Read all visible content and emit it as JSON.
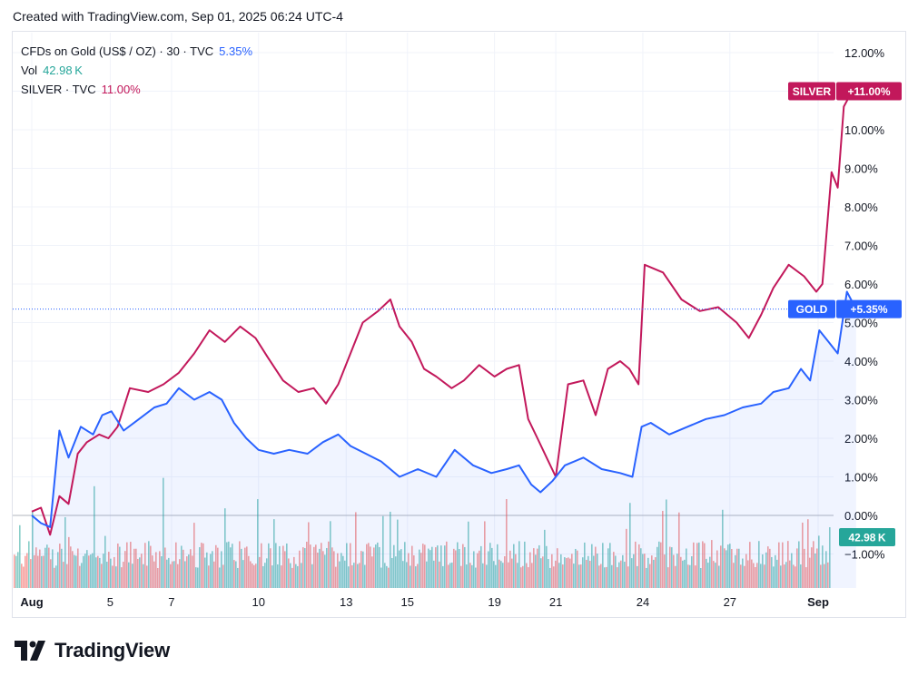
{
  "header": {
    "created_text": "Created with TradingView.com, Sep 01, 2025 06:24 UTC-4"
  },
  "legend": {
    "main": {
      "label": "CFDs on Gold (US$ / OZ) · 30 · TVC",
      "value": "5.35%",
      "color": "#2962ff"
    },
    "vol": {
      "label": "Vol",
      "value": "42.98 K",
      "color": "#26a69a"
    },
    "compare": {
      "label": "SILVER · TVC",
      "value": "11.00%",
      "color": "#c2185b"
    }
  },
  "footer": {
    "brand": "TradingView"
  },
  "colors": {
    "gold_line": "#2962ff",
    "gold_fill": "#2962ff",
    "silver_line": "#c2185b",
    "vol_up": "#26a69a",
    "vol_down": "#ef5350",
    "grid": "#f0f3fa",
    "axis_text": "#131722"
  },
  "chart_data": {
    "type": "line",
    "title": "",
    "y_unit": "%",
    "ylim": [
      -1.4,
      12.4
    ],
    "yticks": [
      "12.00%",
      "11.00%",
      "10.00%",
      "9.00%",
      "8.00%",
      "7.00%",
      "6.00%",
      "5.00%",
      "4.00%",
      "3.00%",
      "2.00%",
      "1.00%",
      "0.00%",
      "−1.00%"
    ],
    "ytick_values": [
      12,
      11,
      10,
      9,
      8,
      7,
      6,
      5,
      4,
      3,
      2,
      1,
      0,
      -1
    ],
    "x_date_labels": [
      "Aug",
      "5",
      "7",
      "10",
      "13",
      "15",
      "19",
      "21",
      "24",
      "27",
      "Sep"
    ],
    "x_date_label_t": [
      0.0,
      0.128,
      0.228,
      0.37,
      0.513,
      0.613,
      0.755,
      0.855,
      0.997,
      1.139,
      1.283
    ],
    "series": [
      {
        "name": "GOLD",
        "badge": "+5.35%",
        "color": "#2962ff",
        "last_value": 5.35,
        "points": [
          [
            0,
            0.0
          ],
          [
            0.015,
            -0.2
          ],
          [
            0.03,
            -0.3
          ],
          [
            0.045,
            2.2
          ],
          [
            0.06,
            1.5
          ],
          [
            0.08,
            2.3
          ],
          [
            0.1,
            2.1
          ],
          [
            0.115,
            2.6
          ],
          [
            0.13,
            2.7
          ],
          [
            0.15,
            2.2
          ],
          [
            0.175,
            2.5
          ],
          [
            0.2,
            2.8
          ],
          [
            0.22,
            2.9
          ],
          [
            0.24,
            3.3
          ],
          [
            0.265,
            3.0
          ],
          [
            0.29,
            3.2
          ],
          [
            0.31,
            3.0
          ],
          [
            0.33,
            2.4
          ],
          [
            0.35,
            2.0
          ],
          [
            0.37,
            1.7
          ],
          [
            0.395,
            1.6
          ],
          [
            0.42,
            1.7
          ],
          [
            0.45,
            1.6
          ],
          [
            0.475,
            1.9
          ],
          [
            0.5,
            2.1
          ],
          [
            0.52,
            1.8
          ],
          [
            0.545,
            1.6
          ],
          [
            0.57,
            1.4
          ],
          [
            0.6,
            1.0
          ],
          [
            0.63,
            1.2
          ],
          [
            0.66,
            1.0
          ],
          [
            0.69,
            1.7
          ],
          [
            0.72,
            1.3
          ],
          [
            0.75,
            1.1
          ],
          [
            0.775,
            1.2
          ],
          [
            0.795,
            1.3
          ],
          [
            0.815,
            0.8
          ],
          [
            0.83,
            0.6
          ],
          [
            0.85,
            0.9
          ],
          [
            0.87,
            1.3
          ],
          [
            0.9,
            1.5
          ],
          [
            0.93,
            1.2
          ],
          [
            0.96,
            1.1
          ],
          [
            0.98,
            1.0
          ],
          [
            0.995,
            2.3
          ],
          [
            1.01,
            2.4
          ],
          [
            1.04,
            2.1
          ],
          [
            1.07,
            2.3
          ],
          [
            1.1,
            2.5
          ],
          [
            1.13,
            2.6
          ],
          [
            1.16,
            2.8
          ],
          [
            1.19,
            2.9
          ],
          [
            1.21,
            3.2
          ],
          [
            1.235,
            3.3
          ],
          [
            1.255,
            3.8
          ],
          [
            1.27,
            3.5
          ],
          [
            1.285,
            4.8
          ],
          [
            1.3,
            4.5
          ],
          [
            1.315,
            4.2
          ],
          [
            1.33,
            5.8
          ],
          [
            1.345,
            5.35
          ]
        ]
      },
      {
        "name": "SILVER",
        "badge": "+11.00%",
        "color": "#c2185b",
        "last_value": 11.0,
        "points": [
          [
            0,
            0.1
          ],
          [
            0.015,
            0.2
          ],
          [
            0.03,
            -0.5
          ],
          [
            0.045,
            0.5
          ],
          [
            0.06,
            0.3
          ],
          [
            0.075,
            1.6
          ],
          [
            0.09,
            1.9
          ],
          [
            0.11,
            2.1
          ],
          [
            0.125,
            2.0
          ],
          [
            0.14,
            2.3
          ],
          [
            0.16,
            3.3
          ],
          [
            0.19,
            3.2
          ],
          [
            0.215,
            3.4
          ],
          [
            0.24,
            3.7
          ],
          [
            0.265,
            4.2
          ],
          [
            0.29,
            4.8
          ],
          [
            0.315,
            4.5
          ],
          [
            0.34,
            4.9
          ],
          [
            0.365,
            4.6
          ],
          [
            0.385,
            4.1
          ],
          [
            0.41,
            3.5
          ],
          [
            0.435,
            3.2
          ],
          [
            0.46,
            3.3
          ],
          [
            0.48,
            2.9
          ],
          [
            0.5,
            3.4
          ],
          [
            0.52,
            4.2
          ],
          [
            0.54,
            5.0
          ],
          [
            0.565,
            5.3
          ],
          [
            0.585,
            5.6
          ],
          [
            0.6,
            4.9
          ],
          [
            0.62,
            4.5
          ],
          [
            0.64,
            3.8
          ],
          [
            0.66,
            3.6
          ],
          [
            0.685,
            3.3
          ],
          [
            0.705,
            3.5
          ],
          [
            0.73,
            3.9
          ],
          [
            0.755,
            3.6
          ],
          [
            0.775,
            3.8
          ],
          [
            0.795,
            3.9
          ],
          [
            0.81,
            2.5
          ],
          [
            0.825,
            2.0
          ],
          [
            0.84,
            1.5
          ],
          [
            0.855,
            1.0
          ],
          [
            0.875,
            3.4
          ],
          [
            0.9,
            3.5
          ],
          [
            0.92,
            2.6
          ],
          [
            0.94,
            3.8
          ],
          [
            0.96,
            4.0
          ],
          [
            0.975,
            3.8
          ],
          [
            0.99,
            3.4
          ],
          [
            1.0,
            6.5
          ],
          [
            1.03,
            6.3
          ],
          [
            1.06,
            5.6
          ],
          [
            1.09,
            5.3
          ],
          [
            1.12,
            5.4
          ],
          [
            1.15,
            5.0
          ],
          [
            1.17,
            4.6
          ],
          [
            1.19,
            5.2
          ],
          [
            1.21,
            5.9
          ],
          [
            1.235,
            6.5
          ],
          [
            1.26,
            6.2
          ],
          [
            1.28,
            5.8
          ],
          [
            1.29,
            6.0
          ],
          [
            1.305,
            8.9
          ],
          [
            1.315,
            8.5
          ],
          [
            1.325,
            10.6
          ],
          [
            1.335,
            10.9
          ],
          [
            1.345,
            11.0
          ]
        ]
      }
    ],
    "volume": {
      "name": "Vol",
      "last_value_label": "42.98 K",
      "description": "volume histogram bars, up (green) and down (red)"
    },
    "grid": true,
    "legend_position": "top-left"
  }
}
